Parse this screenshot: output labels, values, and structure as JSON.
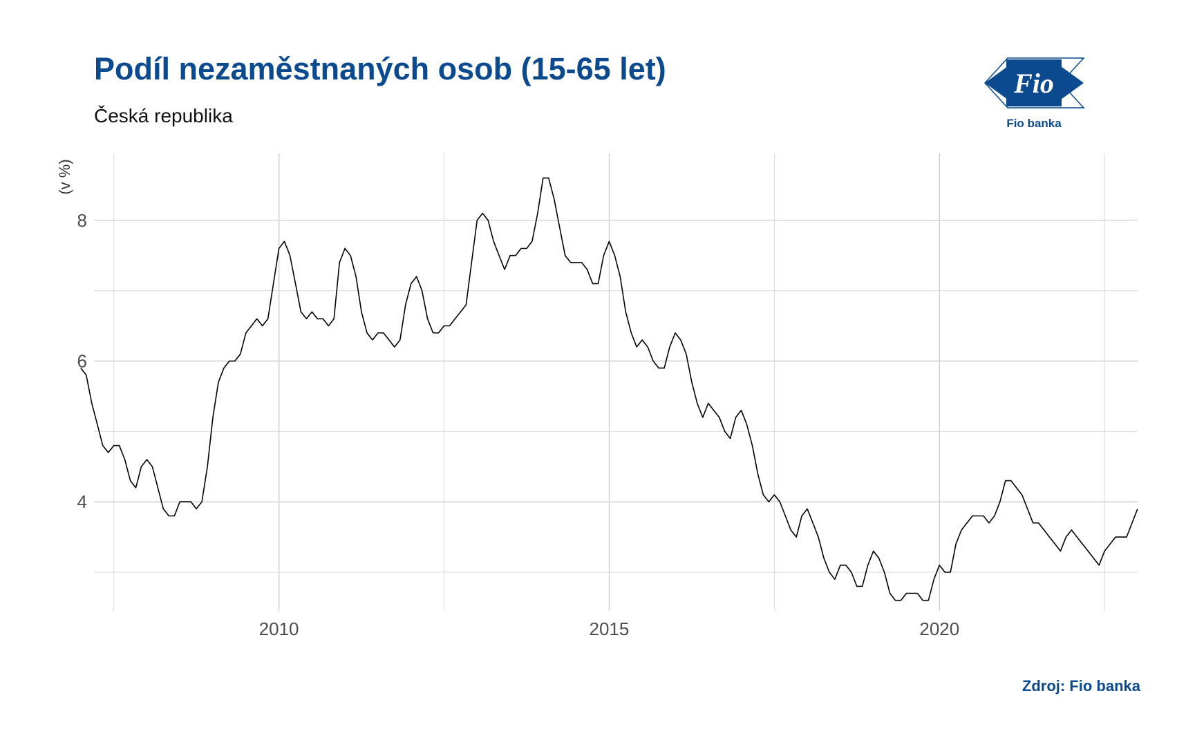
{
  "header": {
    "title": "Podíl nezaměstnaných osob (15-65 let)",
    "subtitle": "Česká republika"
  },
  "logo": {
    "text": "Fio",
    "caption": "Fio banka",
    "color": "#0b4a8f"
  },
  "footer": {
    "source": "Zdroj: Fio banka"
  },
  "chart_data": {
    "type": "line",
    "ylabel": "(v %)",
    "xlabel": "",
    "xlim": [
      2007.2,
      2023.0
    ],
    "ylim": [
      2.45,
      8.95
    ],
    "x_ticks": [
      2010,
      2015,
      2020
    ],
    "y_ticks": [
      4,
      6,
      8
    ],
    "x_minor_grid": [
      2007.5,
      2012.5,
      2017.5,
      2022.5
    ],
    "y_minor_grid": [
      3,
      5,
      7
    ],
    "grid": true,
    "line_color": "#000000",
    "series": [
      {
        "start_year": 2007.0,
        "step": 0.08333,
        "values": [
          5.9,
          5.8,
          5.4,
          5.1,
          4.8,
          4.7,
          4.8,
          4.8,
          4.6,
          4.3,
          4.2,
          4.5,
          4.6,
          4.5,
          4.2,
          3.9,
          3.8,
          3.8,
          4.0,
          4.0,
          4.0,
          3.9,
          4.0,
          4.5,
          5.2,
          5.7,
          5.9,
          6.0,
          6.0,
          6.1,
          6.4,
          6.5,
          6.6,
          6.5,
          6.6,
          7.1,
          7.6,
          7.7,
          7.5,
          7.1,
          6.7,
          6.6,
          6.7,
          6.6,
          6.6,
          6.5,
          6.6,
          7.4,
          7.6,
          7.5,
          7.2,
          6.7,
          6.4,
          6.3,
          6.4,
          6.4,
          6.3,
          6.2,
          6.3,
          6.8,
          7.1,
          7.2,
          7.0,
          6.6,
          6.4,
          6.4,
          6.5,
          6.5,
          6.6,
          6.7,
          6.8,
          7.4,
          8.0,
          8.1,
          8.0,
          7.7,
          7.5,
          7.3,
          7.5,
          7.5,
          7.6,
          7.6,
          7.7,
          8.1,
          8.6,
          8.6,
          8.3,
          7.9,
          7.5,
          7.4,
          7.4,
          7.4,
          7.3,
          7.1,
          7.1,
          7.5,
          7.7,
          7.5,
          7.2,
          6.7,
          6.4,
          6.2,
          6.3,
          6.2,
          6.0,
          5.9,
          5.9,
          6.2,
          6.4,
          6.3,
          6.1,
          5.7,
          5.4,
          5.2,
          5.4,
          5.3,
          5.2,
          5.0,
          4.9,
          5.2,
          5.3,
          5.1,
          4.8,
          4.4,
          4.1,
          4.0,
          4.1,
          4.0,
          3.8,
          3.6,
          3.5,
          3.8,
          3.9,
          3.7,
          3.5,
          3.2,
          3.0,
          2.9,
          3.1,
          3.1,
          3.0,
          2.8,
          2.8,
          3.1,
          3.3,
          3.2,
          3.0,
          2.7,
          2.6,
          2.6,
          2.7,
          2.7,
          2.7,
          2.6,
          2.6,
          2.9,
          3.1,
          3.0,
          3.0,
          3.4,
          3.6,
          3.7,
          3.8,
          3.8,
          3.8,
          3.7,
          3.8,
          4.0,
          4.3,
          4.3,
          4.2,
          4.1,
          3.9,
          3.7,
          3.7,
          3.6,
          3.5,
          3.4,
          3.3,
          3.5,
          3.6,
          3.5,
          3.4,
          3.3,
          3.2,
          3.1,
          3.3,
          3.4,
          3.5,
          3.5,
          3.5,
          3.7,
          3.9
        ]
      }
    ]
  }
}
